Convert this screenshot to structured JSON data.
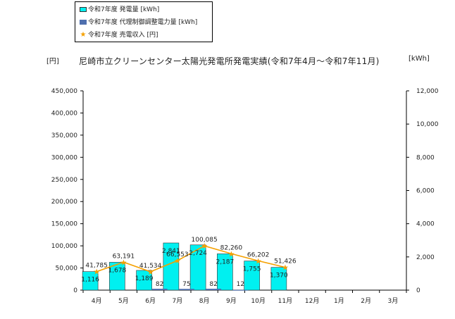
{
  "chart_data": {
    "type": "bar+line",
    "title": "尼崎市立クリーンセンター太陽光発電所発電実績(令和7年4月～令和7年11月)",
    "left_axis_unit": "[円]",
    "right_axis_unit": "[kWh]",
    "categories": [
      "4月",
      "5月",
      "6月",
      "7月",
      "8月",
      "9月",
      "10月",
      "11月",
      "12月",
      "1月",
      "2月",
      "3月"
    ],
    "left_ticks": [
      "0",
      "50,000",
      "100,000",
      "150,000",
      "200,000",
      "250,000",
      "300,000",
      "350,000",
      "400,000",
      "450,000"
    ],
    "right_ticks": [
      "0",
      "2,000",
      "4,000",
      "6,000",
      "8,000",
      "10,000",
      "12,000"
    ],
    "left_ylim": [
      0,
      450000
    ],
    "right_ylim": [
      0,
      12000
    ],
    "legend": [
      {
        "label": "令和7年度 発電量 [kWh]",
        "kind": "bar"
      },
      {
        "label": "令和7年度 代理制御調整電力量 [kWh]",
        "kind": "bar"
      },
      {
        "label": "令和7年度 売電収入 [円]",
        "kind": "line"
      }
    ],
    "series": [
      {
        "name": "令和7年度 発電量 [kWh]",
        "axis": "right",
        "color": "#00f0f0",
        "values": [
          1116,
          1678,
          1189,
          2841,
          2724,
          2187,
          1755,
          1370,
          null,
          null,
          null,
          null
        ],
        "labels": [
          "1,116",
          "1,678",
          "1,189",
          "2,841",
          "2,724",
          "2,187",
          "1,755",
          "1,370",
          "",
          "",
          "",
          ""
        ]
      },
      {
        "name": "令和7年度 代理制御調整電力量 [kWh]",
        "axis": "right",
        "color": "#4f6fae",
        "values": [
          null,
          null,
          82,
          75,
          82,
          12,
          null,
          null,
          null,
          null,
          null,
          null
        ],
        "labels": [
          "",
          "",
          "82",
          "75",
          "82",
          "12",
          "",
          "",
          "",
          "",
          "",
          ""
        ]
      },
      {
        "name": "令和7年度 売電収入 [円]",
        "axis": "left",
        "color": "#f5a000",
        "values": [
          41785,
          63191,
          41534,
          66553,
          100085,
          82260,
          66202,
          51426,
          null,
          null,
          null,
          null
        ],
        "labels": [
          "41,785",
          "63,191",
          "41,534",
          "66,553",
          "100,085",
          "82,260",
          "66,202",
          "51,426",
          "",
          "",
          "",
          ""
        ]
      }
    ]
  }
}
